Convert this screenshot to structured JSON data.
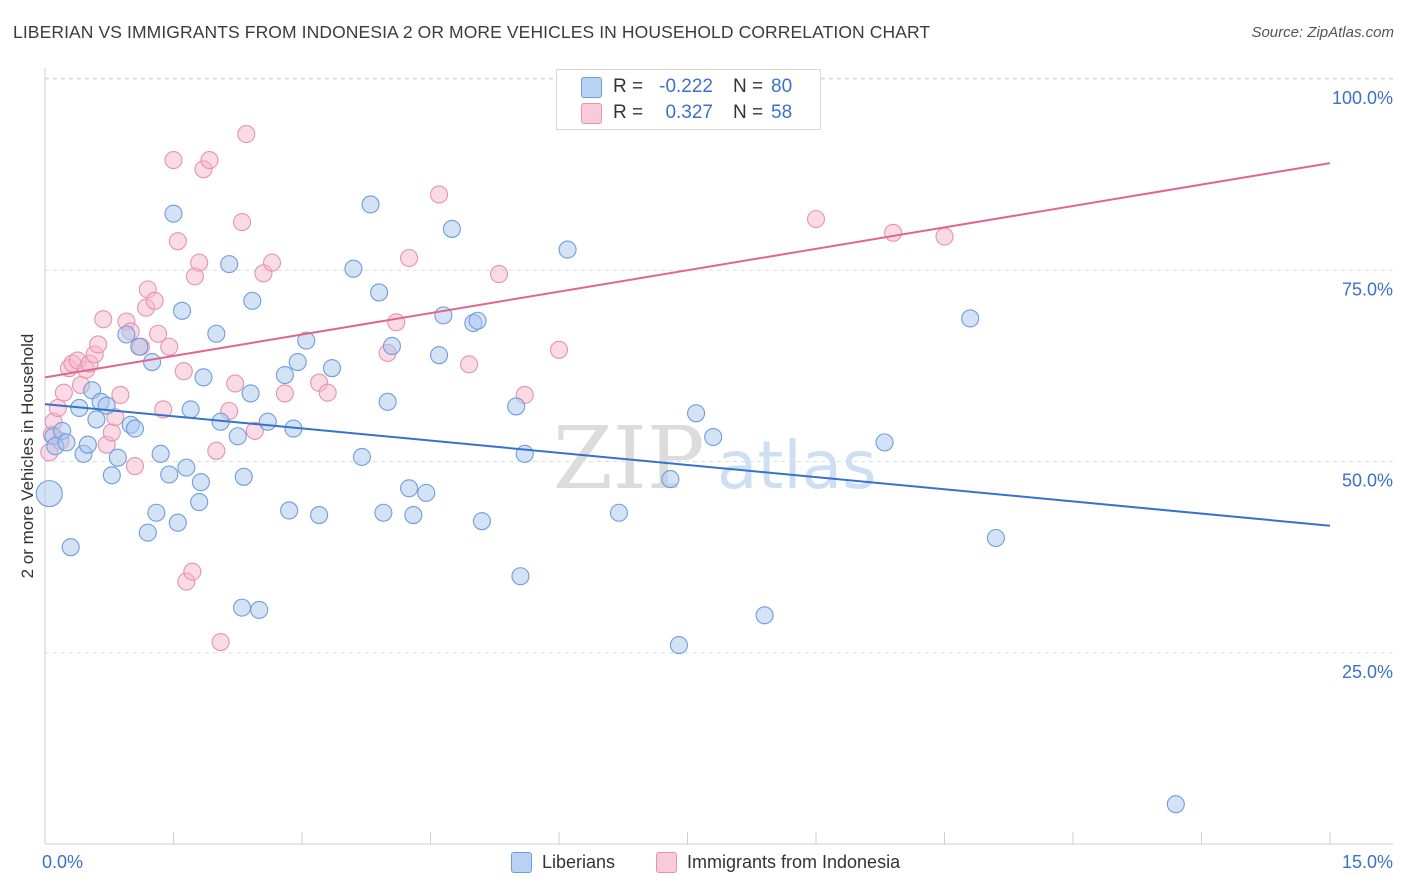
{
  "header": {
    "title": "LIBERIAN VS IMMIGRANTS FROM INDONESIA 2 OR MORE VEHICLES IN HOUSEHOLD CORRELATION CHART",
    "source": "Source: ZipAtlas.com"
  },
  "watermark": {
    "zip": "ZIP",
    "atlas": "atlas"
  },
  "legend": {
    "series1": {
      "r_label": "R =",
      "r_value": "-0.222",
      "n_label": "N =",
      "n_value": "80"
    },
    "series2": {
      "r_label": "R =",
      "r_value": "0.327",
      "n_label": "N =",
      "n_value": "58"
    }
  },
  "colors": {
    "blue_fill": "#a9c6ee",
    "blue_stroke": "#6f9ddc",
    "blue_line": "#3572cc",
    "pink_fill": "#f5b8cb",
    "pink_stroke": "#e693ae",
    "pink_line": "#e0658f",
    "axis_label": "#3b72c8",
    "grid": "#dddddd"
  },
  "chart_data": {
    "type": "scatter",
    "title": "LIBERIAN VS IMMIGRANTS FROM INDONESIA 2 OR MORE VEHICLES IN HOUSEHOLD CORRELATION CHART",
    "xlabel": "",
    "ylabel": "2 or more Vehicles in Household",
    "xlim": [
      0,
      15
    ],
    "ylim": [
      0,
      103
    ],
    "x_tick_labels": [
      "0.0%",
      "15.0%"
    ],
    "y_ticks": [
      25,
      50,
      75,
      100
    ],
    "y_tick_labels": [
      "25.0%",
      "50.0%",
      "75.0%",
      "100.0%"
    ],
    "grid": true,
    "legend_position": "bottom",
    "series": [
      {
        "name": "Liberians",
        "color": "#a9c6ee",
        "trend": {
          "x": [
            0,
            15
          ],
          "y": [
            57.5,
            41.6
          ]
        },
        "points": [
          [
            0.05,
            45.8
          ],
          [
            0.1,
            53.3
          ],
          [
            0.12,
            52.0
          ],
          [
            0.2,
            54.0
          ],
          [
            0.25,
            52.5
          ],
          [
            0.3,
            38.8
          ],
          [
            0.4,
            57.0
          ],
          [
            0.45,
            51.0
          ],
          [
            0.5,
            52.2
          ],
          [
            0.55,
            59.3
          ],
          [
            0.6,
            55.5
          ],
          [
            0.65,
            57.8
          ],
          [
            0.72,
            57.3
          ],
          [
            0.78,
            48.2
          ],
          [
            0.85,
            50.5
          ],
          [
            0.95,
            66.6
          ],
          [
            1.0,
            54.8
          ],
          [
            1.05,
            54.3
          ],
          [
            1.1,
            65.0
          ],
          [
            1.2,
            40.7
          ],
          [
            1.25,
            63.0
          ],
          [
            1.3,
            43.3
          ],
          [
            1.35,
            51.0
          ],
          [
            1.45,
            48.3
          ],
          [
            1.5,
            82.4
          ],
          [
            1.55,
            42.0
          ],
          [
            1.6,
            69.7
          ],
          [
            1.65,
            49.2
          ],
          [
            1.7,
            56.8
          ],
          [
            1.8,
            44.7
          ],
          [
            1.82,
            47.3
          ],
          [
            1.85,
            61.0
          ],
          [
            2.0,
            66.7
          ],
          [
            2.05,
            55.2
          ],
          [
            2.15,
            75.8
          ],
          [
            2.25,
            53.3
          ],
          [
            2.3,
            30.9
          ],
          [
            2.32,
            48.0
          ],
          [
            2.4,
            58.9
          ],
          [
            2.42,
            71.0
          ],
          [
            2.5,
            30.6
          ],
          [
            2.6,
            55.2
          ],
          [
            2.8,
            61.3
          ],
          [
            2.85,
            43.6
          ],
          [
            2.9,
            54.3
          ],
          [
            2.95,
            63.0
          ],
          [
            3.05,
            65.8
          ],
          [
            3.2,
            43.0
          ],
          [
            3.35,
            62.2
          ],
          [
            3.6,
            75.2
          ],
          [
            3.7,
            50.6
          ],
          [
            3.8,
            83.6
          ],
          [
            3.9,
            72.1
          ],
          [
            3.95,
            43.3
          ],
          [
            4.0,
            57.8
          ],
          [
            4.05,
            65.1
          ],
          [
            4.25,
            46.5
          ],
          [
            4.3,
            43.0
          ],
          [
            4.45,
            45.9
          ],
          [
            4.6,
            63.9
          ],
          [
            4.65,
            69.1
          ],
          [
            4.75,
            80.4
          ],
          [
            5.0,
            68.1
          ],
          [
            5.05,
            68.4
          ],
          [
            5.1,
            42.2
          ],
          [
            5.5,
            57.2
          ],
          [
            5.55,
            35.0
          ],
          [
            5.6,
            51.0
          ],
          [
            6.1,
            77.7
          ],
          [
            6.7,
            43.3
          ],
          [
            7.3,
            47.7
          ],
          [
            7.4,
            26.0
          ],
          [
            7.6,
            56.3
          ],
          [
            7.8,
            53.2
          ],
          [
            8.4,
            29.9
          ],
          [
            9.8,
            52.5
          ],
          [
            10.8,
            68.7
          ],
          [
            11.1,
            40.0
          ],
          [
            13.2,
            5.2
          ]
        ]
      },
      {
        "name": "Immigrants from Indonesia",
        "color": "#f5b8cb",
        "trend": {
          "x": [
            0,
            15
          ],
          "y": [
            61.0,
            89.0
          ]
        },
        "points": [
          [
            0.05,
            51.2
          ],
          [
            0.08,
            53.5
          ],
          [
            0.1,
            55.2
          ],
          [
            0.15,
            57.0
          ],
          [
            0.18,
            52.7
          ],
          [
            0.22,
            59.0
          ],
          [
            0.28,
            62.2
          ],
          [
            0.32,
            62.8
          ],
          [
            0.38,
            63.2
          ],
          [
            0.42,
            60.0
          ],
          [
            0.48,
            62.0
          ],
          [
            0.52,
            62.8
          ],
          [
            0.58,
            64.0
          ],
          [
            0.62,
            65.3
          ],
          [
            0.68,
            68.6
          ],
          [
            0.72,
            52.2
          ],
          [
            0.78,
            53.8
          ],
          [
            0.82,
            55.8
          ],
          [
            0.88,
            58.7
          ],
          [
            0.95,
            68.3
          ],
          [
            1.0,
            67.0
          ],
          [
            1.05,
            49.4
          ],
          [
            1.12,
            65.0
          ],
          [
            1.18,
            70.1
          ],
          [
            1.2,
            72.5
          ],
          [
            1.28,
            71.0
          ],
          [
            1.32,
            66.7
          ],
          [
            1.38,
            56.8
          ],
          [
            1.45,
            65.0
          ],
          [
            1.5,
            89.4
          ],
          [
            1.55,
            78.8
          ],
          [
            1.62,
            61.8
          ],
          [
            1.65,
            34.3
          ],
          [
            1.72,
            35.6
          ],
          [
            1.75,
            74.2
          ],
          [
            1.8,
            76.0
          ],
          [
            1.85,
            88.2
          ],
          [
            1.92,
            89.4
          ],
          [
            2.0,
            51.4
          ],
          [
            2.05,
            26.4
          ],
          [
            2.15,
            56.6
          ],
          [
            2.22,
            60.2
          ],
          [
            2.3,
            81.3
          ],
          [
            2.35,
            92.8
          ],
          [
            2.45,
            54.0
          ],
          [
            2.55,
            74.6
          ],
          [
            2.65,
            76.0
          ],
          [
            2.8,
            58.9
          ],
          [
            3.2,
            60.3
          ],
          [
            3.3,
            59.0
          ],
          [
            4.0,
            64.2
          ],
          [
            4.1,
            68.2
          ],
          [
            4.25,
            76.6
          ],
          [
            4.6,
            84.9
          ],
          [
            4.95,
            62.7
          ],
          [
            5.3,
            74.5
          ],
          [
            5.6,
            58.7
          ],
          [
            6.0,
            64.6
          ],
          [
            9.0,
            81.7
          ],
          [
            9.9,
            79.9
          ],
          [
            10.5,
            79.4
          ]
        ]
      }
    ]
  },
  "x_axis": {
    "min_label": "0.0%",
    "max_label": "15.0%"
  }
}
